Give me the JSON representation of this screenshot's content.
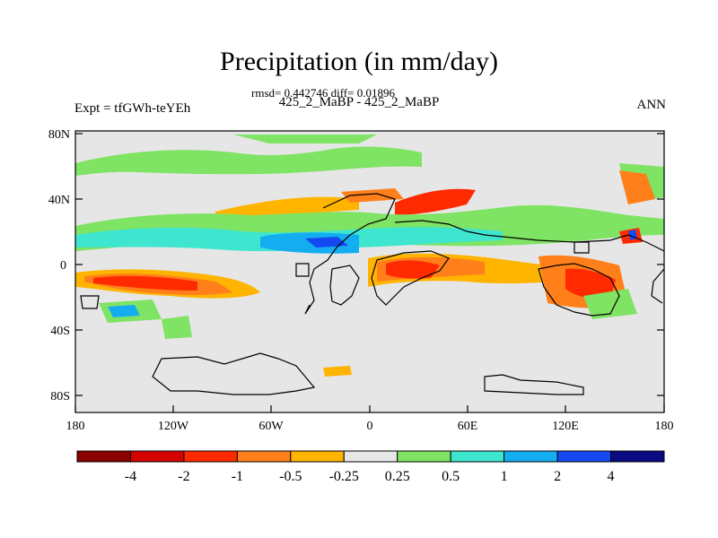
{
  "title": "Precipitation (in mm/day)",
  "stats_line": "rmsd= 0.442746 diff= 0.01896",
  "case_line": "425_2_MaBP - 425_2_MaBP",
  "left_label": "Expt = tfGWh-teYEh",
  "right_label": "ANN",
  "map": {
    "lat_ticks": [
      "80N",
      "40N",
      "0",
      "40S",
      "80S"
    ],
    "lon_ticks": [
      "180",
      "120W",
      "60W",
      "0",
      "60E",
      "120E",
      "180"
    ]
  },
  "colorbar": {
    "labels": [
      "-4",
      "-2",
      "-1",
      "-0.5",
      "-0.25",
      "0.25",
      "0.5",
      "1",
      "2",
      "4"
    ],
    "colors": [
      "#8b0000",
      "#d50000",
      "#ff2a00",
      "#ff7f1a",
      "#ffb400",
      "#e6e6e6",
      "#7fe364",
      "#3ee6cf",
      "#14aef0",
      "#1448f0",
      "#0a0a82"
    ]
  },
  "colors": {
    "background": "#e6e6e6",
    "red": "#d50000",
    "orange_red": "#ff2a00",
    "orange": "#ff7f1a",
    "yellow": "#ffb400",
    "green": "#7fe364",
    "cyan": "#3ee6cf",
    "light_blue": "#14aef0",
    "blue": "#1448f0"
  }
}
